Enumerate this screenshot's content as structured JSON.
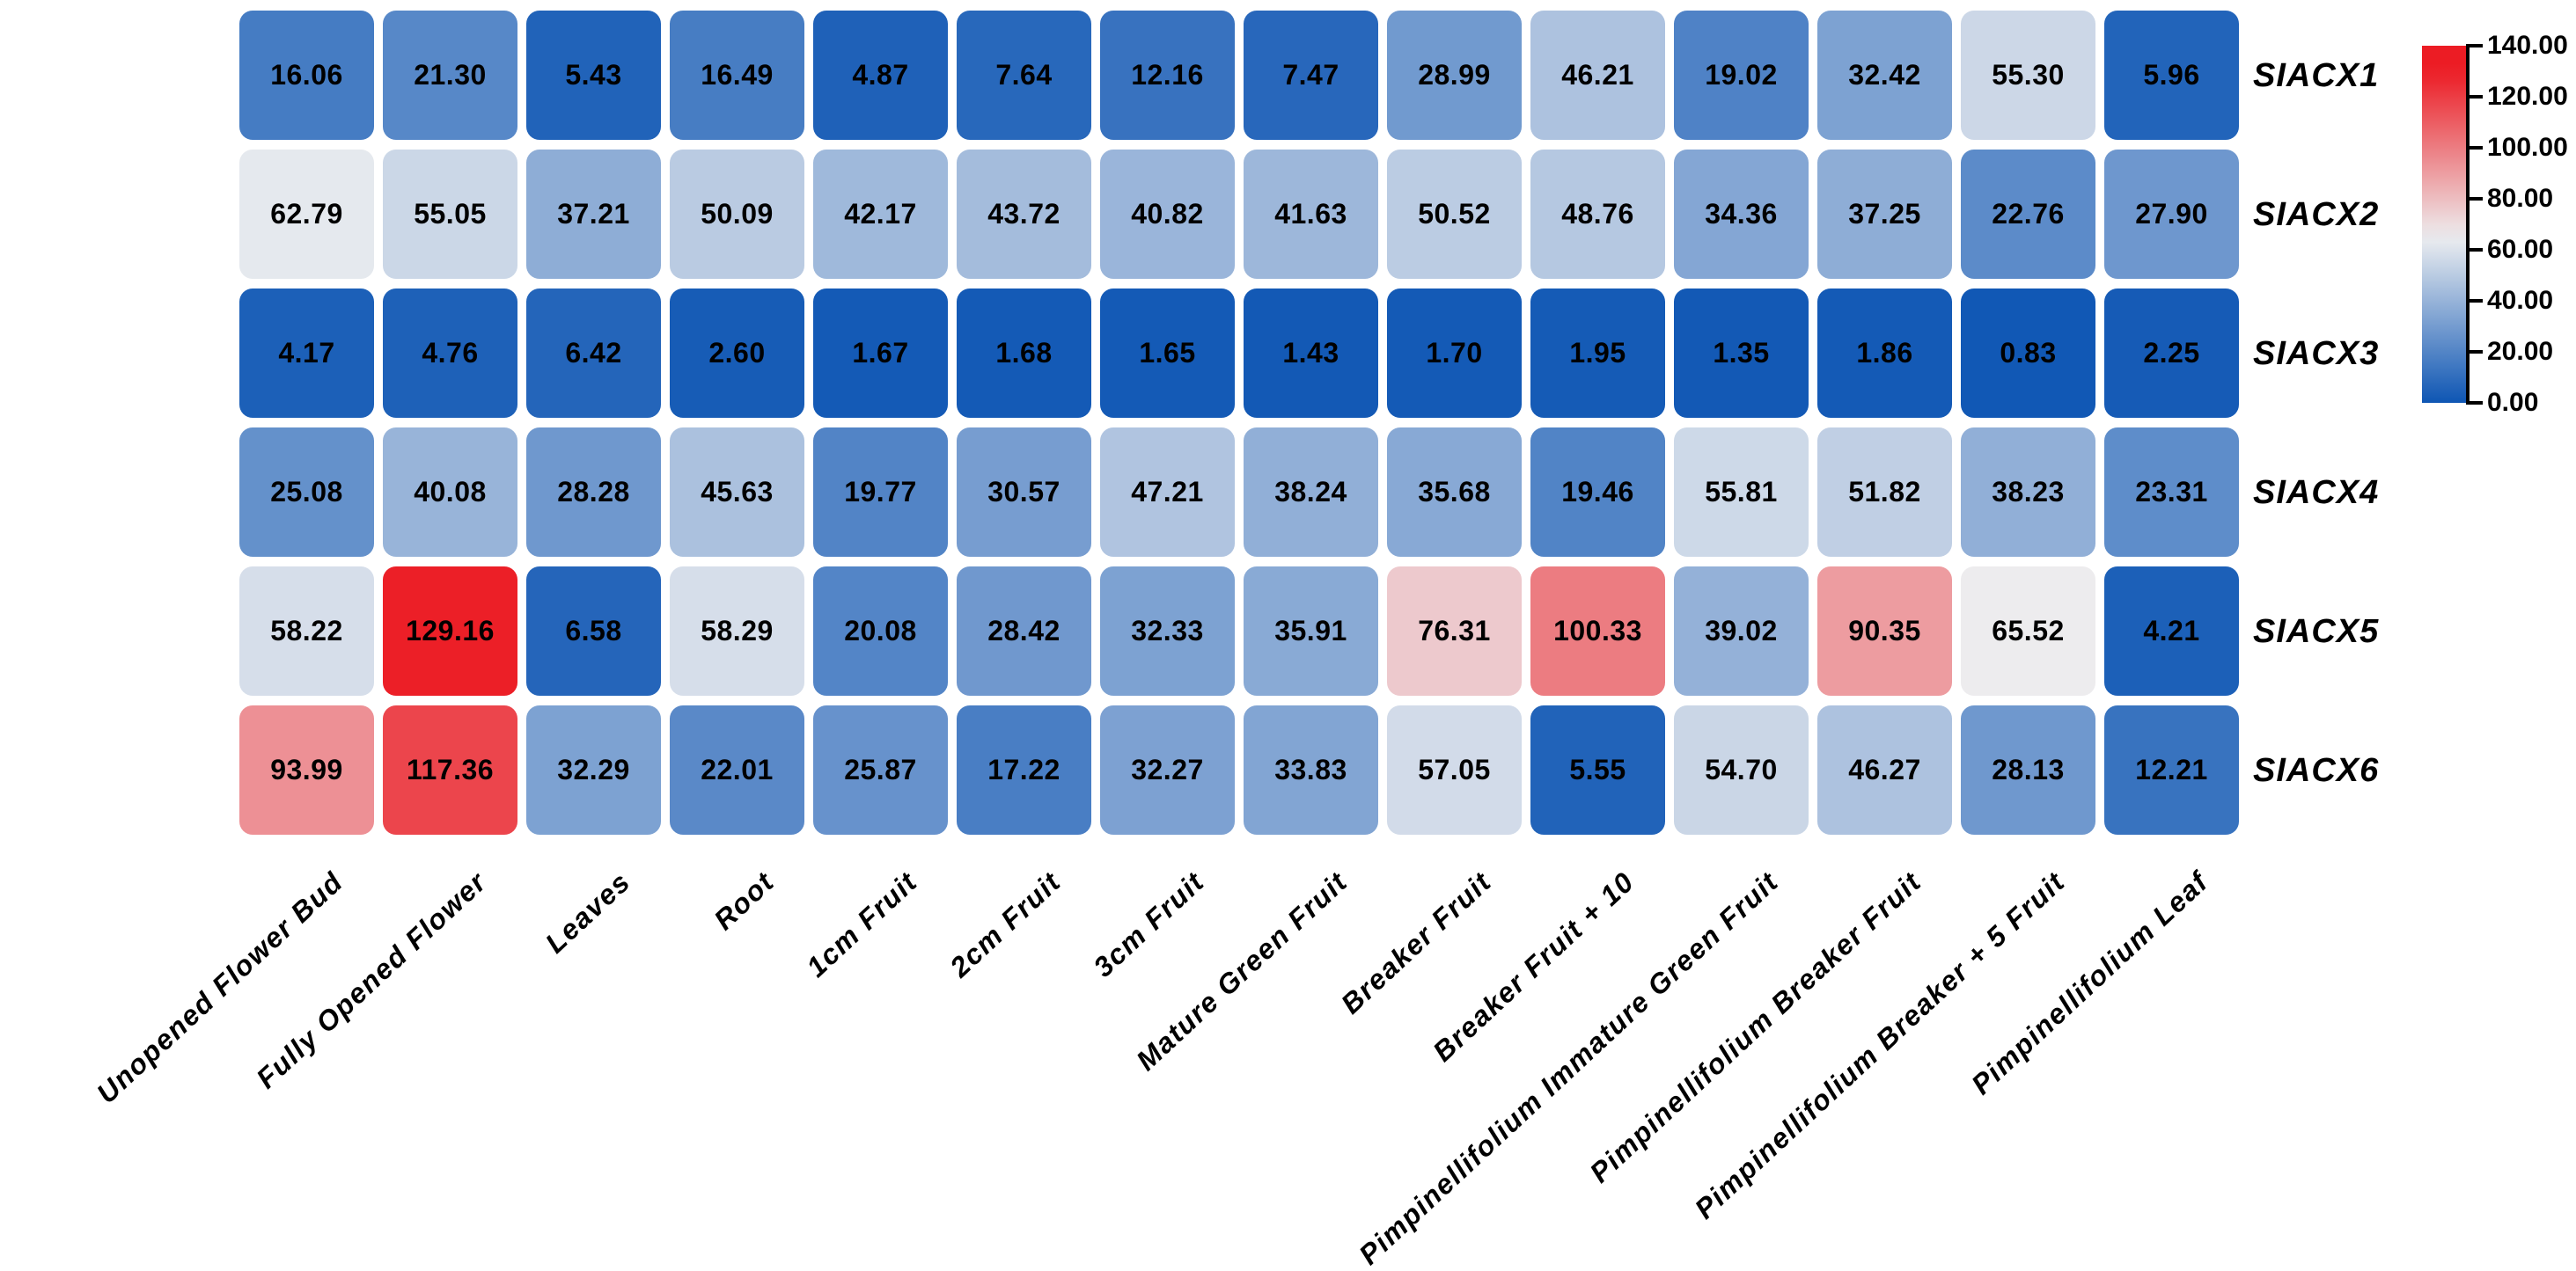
{
  "figure": {
    "background": "#ffffff",
    "text_color": "#000000"
  },
  "chart_data": {
    "type": "heatmap",
    "title": "",
    "xlabel": "",
    "ylabel": "",
    "rows": [
      "SIACX1",
      "SIACX2",
      "SIACX3",
      "SIACX4",
      "SIACX5",
      "SIACX6"
    ],
    "columns": [
      "Unopened Flower Bud",
      "Fully Opened Flower",
      "Leaves",
      "Root",
      "1cm Fruit",
      "2cm Fruit",
      "3cm Fruit",
      "Mature Green Fruit",
      "Breaker Fruit",
      "Breaker Fruit + 10",
      "Pimpinellifolium Immature Green Fruit",
      "Pimpinellifolium Breaker Fruit",
      "Pimpinellifolium Breaker + 5 Fruit",
      "Pimpinellifolium Leaf"
    ],
    "values": [
      [
        16.06,
        21.3,
        5.43,
        16.49,
        4.87,
        7.64,
        12.16,
        7.47,
        28.99,
        46.21,
        19.02,
        32.42,
        55.3,
        5.96
      ],
      [
        62.79,
        55.05,
        37.21,
        50.09,
        42.17,
        43.72,
        40.82,
        41.63,
        50.52,
        48.76,
        34.36,
        37.25,
        22.76,
        27.9
      ],
      [
        4.17,
        4.76,
        6.42,
        2.6,
        1.67,
        1.68,
        1.65,
        1.43,
        1.7,
        1.95,
        1.35,
        1.86,
        0.83,
        2.25
      ],
      [
        25.08,
        40.08,
        28.28,
        45.63,
        19.77,
        30.57,
        47.21,
        38.24,
        35.68,
        19.46,
        55.81,
        51.82,
        38.23,
        23.31
      ],
      [
        58.22,
        129.16,
        6.58,
        58.29,
        20.08,
        28.42,
        32.33,
        35.91,
        76.31,
        100.33,
        39.02,
        90.35,
        65.52,
        4.21
      ],
      [
        93.99,
        117.36,
        32.29,
        22.01,
        25.87,
        17.22,
        32.27,
        33.83,
        57.05,
        5.55,
        54.7,
        46.27,
        28.13,
        12.21
      ]
    ],
    "value_format_decimals": 2,
    "grid": false,
    "legend_position": "right",
    "colorbar": {
      "min": 0,
      "max": 140,
      "ticks": [
        140,
        120,
        100,
        80,
        60,
        40,
        20,
        0
      ],
      "tick_format_decimals": 2,
      "color_low": "#0E56B4",
      "color_mid": "#EDEEF0",
      "color_high": "#EC1C24",
      "mid_value": 65,
      "high_saturation_value": 130
    }
  }
}
